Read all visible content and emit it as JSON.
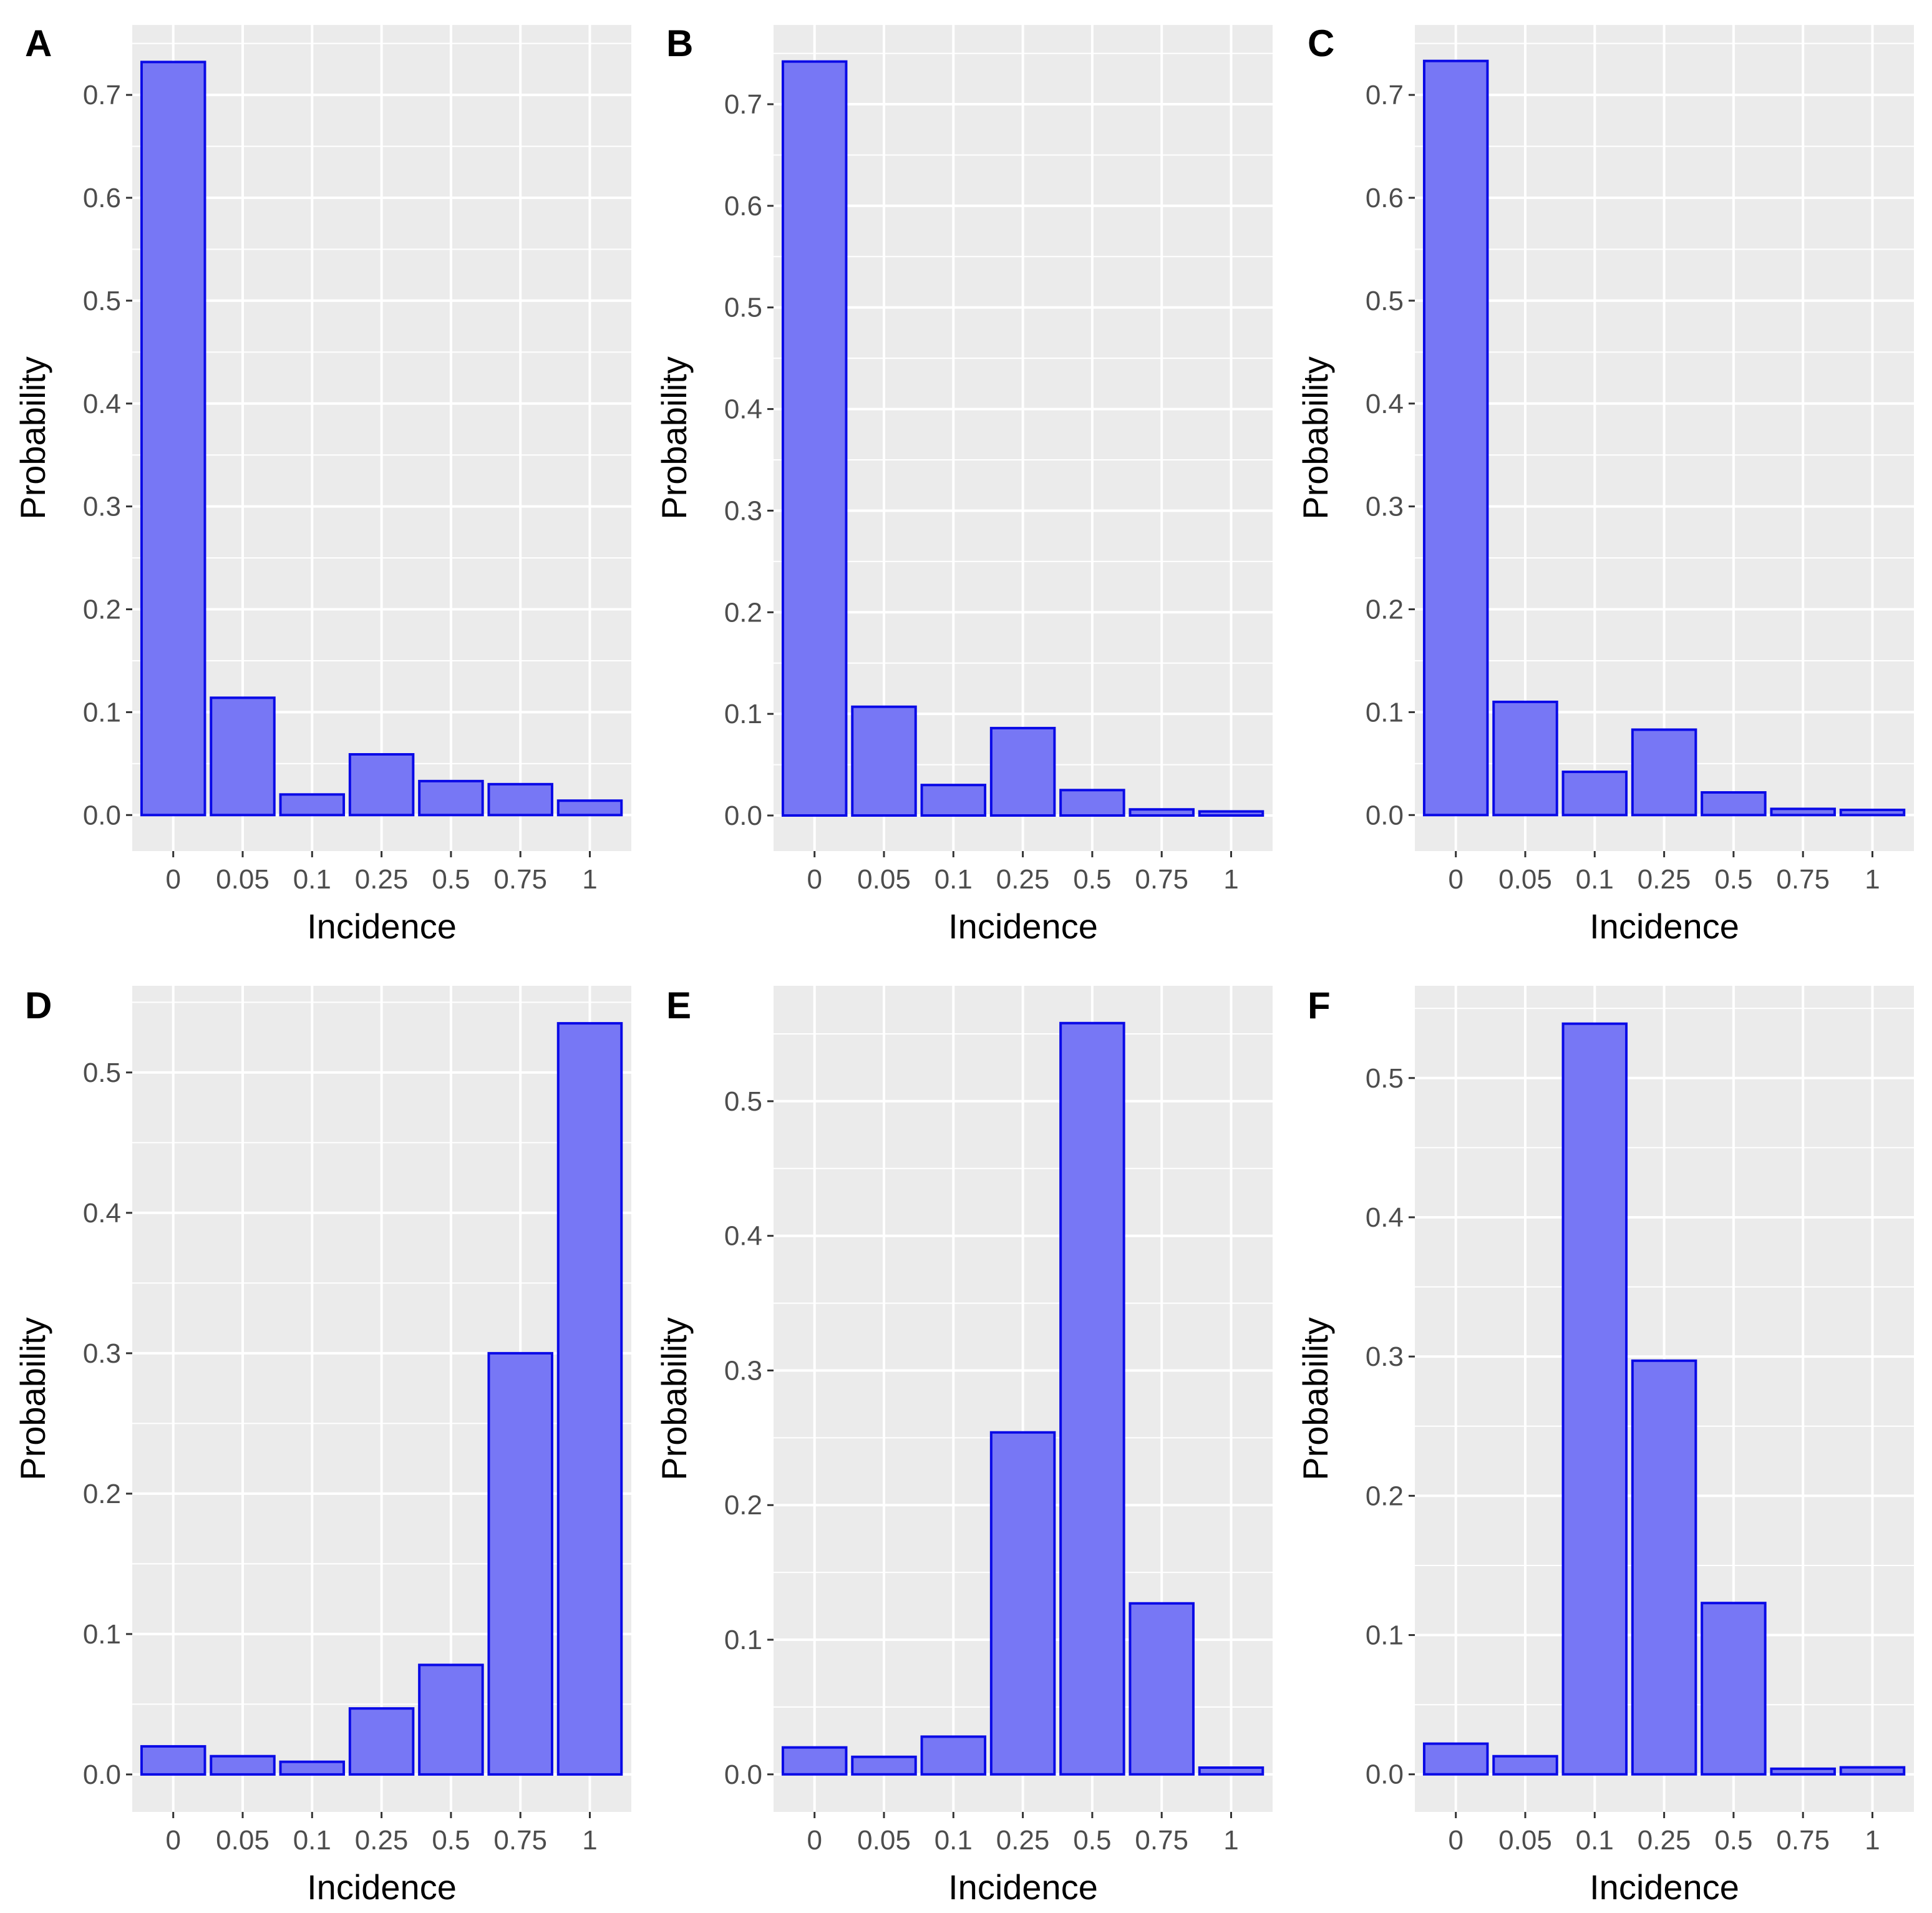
{
  "chart_data": [
    {
      "panel": "A",
      "type": "bar",
      "categories": [
        "0",
        "0.05",
        "0.1",
        "0.25",
        "0.5",
        "0.75",
        "1"
      ],
      "values": [
        0.732,
        0.114,
        0.02,
        0.059,
        0.033,
        0.03,
        0.014
      ],
      "xlabel": "Incidence",
      "ylabel": "Probability",
      "yticks": [
        0.0,
        0.1,
        0.2,
        0.3,
        0.4,
        0.5,
        0.6,
        0.7
      ],
      "ytick_labels": [
        "0.0",
        "0.1",
        "0.2",
        "0.3",
        "0.4",
        "0.5",
        "0.6",
        "0.7"
      ],
      "ylim": [
        -0.035,
        0.768
      ]
    },
    {
      "panel": "B",
      "type": "bar",
      "categories": [
        "0",
        "0.05",
        "0.1",
        "0.25",
        "0.5",
        "0.75",
        "1"
      ],
      "values": [
        0.742,
        0.107,
        0.03,
        0.086,
        0.025,
        0.006,
        0.004
      ],
      "xlabel": "Incidence",
      "ylabel": "Probability",
      "yticks": [
        0.0,
        0.1,
        0.2,
        0.3,
        0.4,
        0.5,
        0.6,
        0.7
      ],
      "ytick_labels": [
        "0.0",
        "0.1",
        "0.2",
        "0.3",
        "0.4",
        "0.5",
        "0.6",
        "0.7"
      ],
      "ylim": [
        -0.035,
        0.778
      ]
    },
    {
      "panel": "C",
      "type": "bar",
      "categories": [
        "0",
        "0.05",
        "0.1",
        "0.25",
        "0.5",
        "0.75",
        "1"
      ],
      "values": [
        0.733,
        0.11,
        0.042,
        0.083,
        0.022,
        0.006,
        0.005
      ],
      "xlabel": "Incidence",
      "ylabel": "Probability",
      "yticks": [
        0.0,
        0.1,
        0.2,
        0.3,
        0.4,
        0.5,
        0.6,
        0.7
      ],
      "ytick_labels": [
        "0.0",
        "0.1",
        "0.2",
        "0.3",
        "0.4",
        "0.5",
        "0.6",
        "0.7"
      ],
      "ylim": [
        -0.035,
        0.768
      ]
    },
    {
      "panel": "D",
      "type": "bar",
      "categories": [
        "0",
        "0.05",
        "0.1",
        "0.25",
        "0.5",
        "0.75",
        "1"
      ],
      "values": [
        0.02,
        0.013,
        0.009,
        0.047,
        0.078,
        0.3,
        0.535
      ],
      "xlabel": "Incidence",
      "ylabel": "Probability",
      "yticks": [
        0.0,
        0.1,
        0.2,
        0.3,
        0.4,
        0.5
      ],
      "ytick_labels": [
        "0.0",
        "0.1",
        "0.2",
        "0.3",
        "0.4",
        "0.5"
      ],
      "ylim": [
        -0.0267,
        0.5617
      ]
    },
    {
      "panel": "E",
      "type": "bar",
      "categories": [
        "0",
        "0.05",
        "0.1",
        "0.25",
        "0.5",
        "0.75",
        "1"
      ],
      "values": [
        0.02,
        0.013,
        0.028,
        0.254,
        0.558,
        0.127,
        0.005
      ],
      "xlabel": "Incidence",
      "ylabel": "Probability",
      "yticks": [
        0.0,
        0.1,
        0.2,
        0.3,
        0.4,
        0.5
      ],
      "ytick_labels": [
        "0.0",
        "0.1",
        "0.2",
        "0.3",
        "0.4",
        "0.5"
      ],
      "ylim": [
        -0.0279,
        0.5857
      ]
    },
    {
      "panel": "F",
      "type": "bar",
      "categories": [
        "0",
        "0.05",
        "0.1",
        "0.25",
        "0.5",
        "0.75",
        "1"
      ],
      "values": [
        0.022,
        0.013,
        0.539,
        0.297,
        0.123,
        0.004,
        0.005
      ],
      "xlabel": "Incidence",
      "ylabel": "Probability",
      "yticks": [
        0.0,
        0.1,
        0.2,
        0.3,
        0.4,
        0.5
      ],
      "ytick_labels": [
        "0.0",
        "0.1",
        "0.2",
        "0.3",
        "0.4",
        "0.5"
      ],
      "ylim": [
        -0.027,
        0.5662
      ]
    }
  ]
}
